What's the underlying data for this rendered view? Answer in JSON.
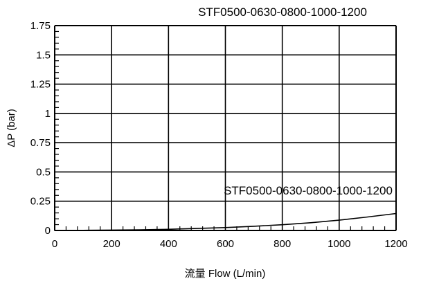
{
  "chart_data": {
    "type": "line",
    "title": "STF0500-0630-0800-1000-1200",
    "xlabel": "流量 Flow (L/min)",
    "ylabel": "ΔP (bar)",
    "xlim": [
      0,
      1200
    ],
    "ylim": [
      0,
      1.75
    ],
    "x_ticks": [
      0,
      200,
      400,
      600,
      800,
      1000,
      1200
    ],
    "x_tick_labels": [
      "0",
      "200",
      "400",
      "600",
      "800",
      "1000",
      "1200"
    ],
    "y_ticks": [
      0,
      0.25,
      0.5,
      0.75,
      1,
      1.25,
      1.5,
      1.75
    ],
    "y_tick_labels": [
      "0",
      "0.25",
      "0.5",
      "0.75",
      "1",
      "1.25",
      "1.5",
      "1.75"
    ],
    "grid": true,
    "series": [
      {
        "name": "STF0500-0630-0800-1000-1200",
        "x": [
          0,
          100,
          200,
          300,
          400,
          500,
          600,
          700,
          800,
          900,
          1000,
          1100,
          1200
        ],
        "y": [
          0,
          0.001,
          0.0035,
          0.006,
          0.01,
          0.017,
          0.025,
          0.036,
          0.049,
          0.066,
          0.088,
          0.115,
          0.145
        ]
      }
    ],
    "colors": {
      "grid": "#000000",
      "line": "#000000",
      "background": "#ffffff"
    }
  }
}
